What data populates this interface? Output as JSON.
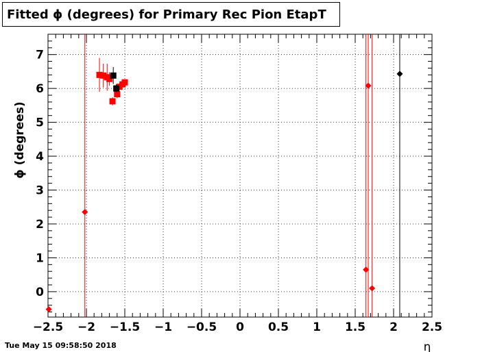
{
  "chart_data": {
    "type": "scatter",
    "title": "Fitted ϕ (degrees) for Primary Rec Pion EtapT",
    "xlabel": "η",
    "ylabel": "ϕ (degrees)",
    "xlim": [
      -2.5,
      2.5
    ],
    "ylim": [
      -0.75,
      7.6
    ],
    "x_ticks": [
      -2.5,
      -2,
      -1.5,
      -1,
      -0.5,
      0,
      0.5,
      1,
      1.5,
      2,
      2.5
    ],
    "x_tick_labels": [
      "−2.5",
      "−2",
      "−1.5",
      "−1",
      "−0.5",
      "0",
      "0.5",
      "1",
      "1.5",
      "2",
      "2.5"
    ],
    "y_ticks": [
      0,
      1,
      2,
      3,
      4,
      5,
      6,
      7
    ],
    "y_tick_labels": [
      "0",
      "1",
      "2",
      "3",
      "4",
      "5",
      "6",
      "7"
    ],
    "grid": true,
    "vertical_lines": [
      {
        "x": -2.02,
        "color": "#ff0000"
      },
      {
        "x": 1.64,
        "color": "#ff0000"
      },
      {
        "x": 1.67,
        "color": "#ff0000"
      },
      {
        "x": 1.72,
        "color": "#ff0000"
      },
      {
        "x": 2.08,
        "color": "#000000"
      }
    ],
    "series": [
      {
        "color": "#ff0000",
        "marker": "diamond",
        "points": [
          {
            "x": -2.49,
            "y": -0.52
          },
          {
            "x": -2.02,
            "y": 2.35
          },
          {
            "x": 1.64,
            "y": 0.65
          },
          {
            "x": 1.67,
            "y": 6.08
          },
          {
            "x": 1.72,
            "y": 0.1
          }
        ]
      },
      {
        "color": "#ff0000",
        "marker": "square",
        "points": [
          {
            "x": -1.83,
            "y": 6.4,
            "err": 0.5
          },
          {
            "x": -1.78,
            "y": 6.38,
            "err": 0.35
          },
          {
            "x": -1.73,
            "y": 6.33,
            "err": 0.4
          },
          {
            "x": -1.7,
            "y": 6.28,
            "err": 0.2
          },
          {
            "x": -1.66,
            "y": 5.62,
            "err": 0.12
          },
          {
            "x": -1.6,
            "y": 5.83,
            "err": 0.12
          },
          {
            "x": -1.57,
            "y": 6.05,
            "err": 0.1
          },
          {
            "x": -1.53,
            "y": 6.12,
            "err": 0.08
          },
          {
            "x": -1.5,
            "y": 6.18,
            "err": 0.05
          }
        ]
      },
      {
        "color": "#000000",
        "marker": "square",
        "points": [
          {
            "x": -1.65,
            "y": 6.38,
            "err": 0.25
          },
          {
            "x": -1.61,
            "y": 6.0,
            "err": 0.12
          }
        ]
      },
      {
        "color": "#000000",
        "marker": "diamond",
        "points": [
          {
            "x": 2.08,
            "y": 6.43
          }
        ]
      }
    ]
  },
  "footer": {
    "timestamp": "Tue May 15 09:58:50 2018"
  }
}
